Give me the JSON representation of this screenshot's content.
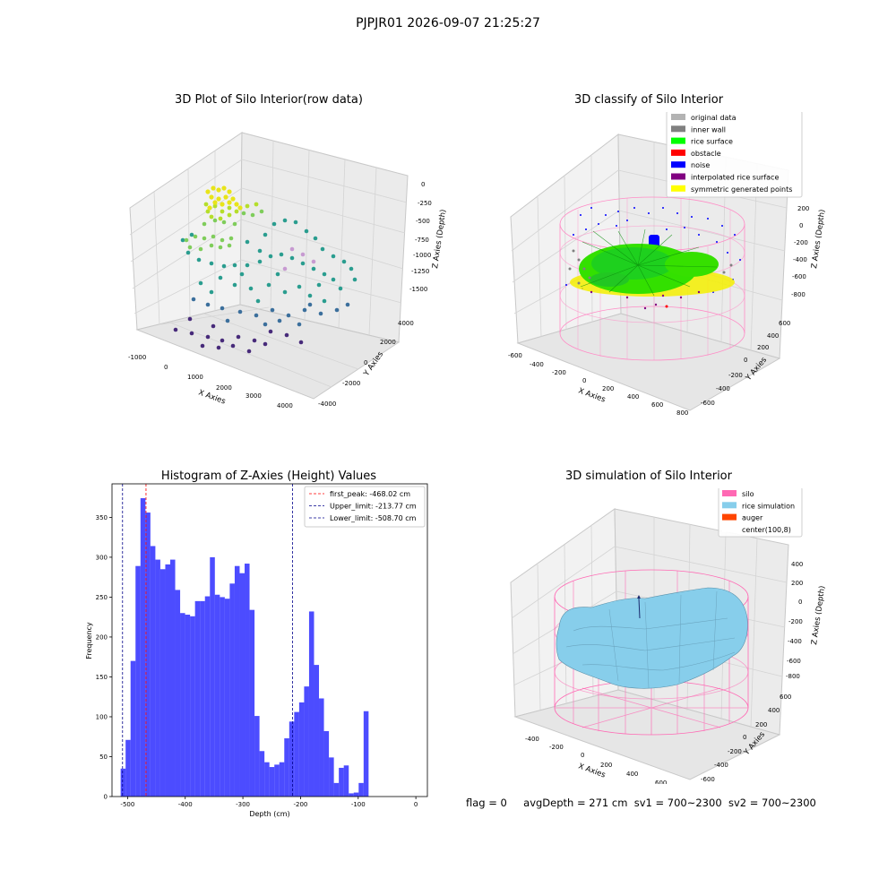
{
  "suptitle": "PJPJR01 2026-09-07 21:25:27",
  "panels": {
    "raw": {
      "title": "3D Plot of Silo Interior(row data)",
      "xlabel": "X Axies",
      "ylabel": "Y Axies",
      "zlabel": "Z Axies (Depth)",
      "xticks": [
        "-1000",
        "0",
        "1000",
        "2000",
        "3000",
        "4000"
      ],
      "yticks": [
        "-4000",
        "-2000",
        "0",
        "2000",
        "4000"
      ],
      "zticks": [
        "0",
        "-250",
        "-500",
        "-750",
        "-1000",
        "-1250",
        "-1500"
      ]
    },
    "classify": {
      "title": "3D classify of Silo Interior",
      "xlabel": "X Axies",
      "ylabel": "Y Axies",
      "zlabel": "Z Axies (Depth)",
      "xticks": [
        "-600",
        "-400",
        "-200",
        "0",
        "200",
        "400",
        "600",
        "800"
      ],
      "yticks": [
        "-600",
        "-400",
        "-200",
        "0",
        "200",
        "400",
        "600"
      ],
      "zticks": [
        "200",
        "0",
        "-200",
        "-400",
        "-600",
        "-800"
      ],
      "legend": [
        {
          "label": "original data",
          "color": "#b3b3b3"
        },
        {
          "label": "inner wall",
          "color": "#808080"
        },
        {
          "label": "rice surface",
          "color": "#00ff00"
        },
        {
          "label": "obstacle",
          "color": "#ff0000"
        },
        {
          "label": "noise",
          "color": "#0000ff"
        },
        {
          "label": "interpolated rice surface",
          "color": "#800080"
        },
        {
          "label": "symmetric generated points",
          "color": "#ffff00"
        }
      ]
    },
    "simulation": {
      "title": "3D simulation of Silo Interior",
      "xlabel": "X Axies",
      "ylabel": "Y Axies",
      "zlabel": "Z Axies (Depth)",
      "xticks": [
        "-400",
        "-200",
        "0",
        "200",
        "400",
        "600"
      ],
      "yticks": [
        "-600",
        "-400",
        "-200",
        "0",
        "200",
        "400",
        "600"
      ],
      "zticks": [
        "400",
        "200",
        "0",
        "-200",
        "-400",
        "-600",
        "-800"
      ],
      "legend": [
        {
          "label": "silo",
          "color": "#ff69b4"
        },
        {
          "label": "rice simulation",
          "color": "#87ceeb"
        },
        {
          "label": "auger",
          "color": "#ff4500"
        },
        {
          "label": "center(100,8)",
          "color": "#ffffff"
        }
      ]
    }
  },
  "status": {
    "flag": "flag = 0",
    "avg": "avgDepth = 271 cm",
    "sv1": "sv1 = 700~2300",
    "sv2": "sv2 = 700~2300"
  },
  "chart_data": {
    "type": "bar",
    "title": "Histogram of Z-Axies (Height) Values",
    "xlabel": "Depth (cm)",
    "ylabel": "Frequency",
    "xlim": [
      -527,
      20
    ],
    "ylim": [
      0,
      392
    ],
    "xticks": [
      -500,
      -400,
      -300,
      -200,
      -100,
      0
    ],
    "yticks": [
      0,
      50,
      100,
      150,
      200,
      250,
      300,
      350
    ],
    "bin_start": -512,
    "bin_width": 8.6,
    "values": [
      35,
      71,
      170,
      289,
      374,
      356,
      314,
      297,
      285,
      291,
      297,
      259,
      230,
      228,
      226,
      245,
      245,
      251,
      300,
      253,
      250,
      248,
      267,
      289,
      280,
      292,
      234,
      101,
      57,
      43,
      37,
      40,
      43,
      73,
      94,
      106,
      118,
      138,
      232,
      165,
      123,
      82,
      49,
      17,
      36,
      39,
      4,
      5,
      17,
      107
    ],
    "color": "#0000ff",
    "vlines": [
      {
        "label": "first_peak: -468.02 cm",
        "x": -468.02,
        "color": "#ff0000"
      },
      {
        "label": "Upper_limit: -213.77 cm",
        "x": -213.77,
        "color": "#00008b"
      },
      {
        "label": "Lower_limit: -508.70 cm",
        "x": -508.7,
        "color": "#00008b"
      }
    ]
  }
}
